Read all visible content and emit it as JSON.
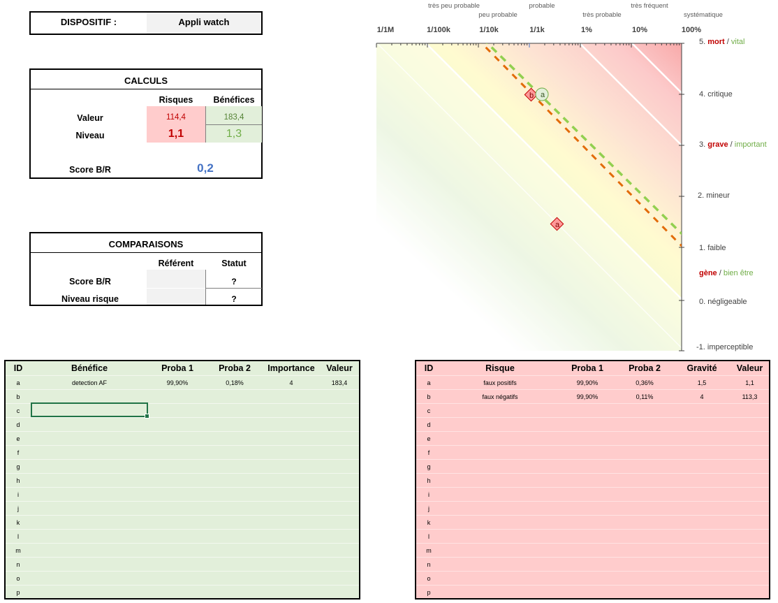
{
  "device": {
    "label": "DISPOSITIF :",
    "value": "Appli watch"
  },
  "calculs": {
    "title": "CALCULS",
    "col_risques": "Risques",
    "col_benefices": "Bénéfices",
    "row_valeur": "Valeur",
    "row_niveau": "Niveau",
    "valeur_risques": "114,4",
    "valeur_benefices": "183,4",
    "niveau_risques": "1,1",
    "niveau_benefices": "1,3",
    "score_label": "Score B/R",
    "score_value": "0,2"
  },
  "comparaisons": {
    "title": "COMPARAISONS",
    "col_referent": "Référent",
    "col_statut": "Statut",
    "row_score": "Score B/R",
    "row_niveau": "Niveau risque",
    "statut_score": "?",
    "statut_niveau": "?"
  },
  "chart": {
    "prob_labels_top": [
      "très peu probable",
      "probable",
      "très fréquent"
    ],
    "prob_labels_bottom": [
      "peu probable",
      "très probable",
      "systématique"
    ],
    "x_ticks": [
      "1/1M",
      "1/100k",
      "1/10k",
      "1/1k",
      "1%",
      "10%",
      "100%"
    ],
    "severity": [
      {
        "num": "5.",
        "risk": "mort",
        "sep": " / ",
        "benefit": "vital"
      },
      {
        "num": "4.",
        "text": "critique"
      },
      {
        "num": "3.",
        "risk": "grave",
        "sep": " / ",
        "benefit": "important"
      },
      {
        "num": "2.",
        "text": "mineur"
      },
      {
        "num": "1.",
        "text": "faible"
      },
      {
        "num": "",
        "risk": "gène",
        "sep": " / ",
        "benefit": "bien être"
      },
      {
        "num": "0.",
        "text": "négligeable"
      },
      {
        "num": "-1.",
        "text": "imperceptible"
      }
    ],
    "markers": [
      {
        "id": "b",
        "kind": "risk"
      },
      {
        "id": "a",
        "kind": "benefit"
      },
      {
        "id": "a",
        "kind": "risk"
      }
    ],
    "colors": {
      "risk": "#c00000",
      "benefit": "#70ad47",
      "risk_line": "#e26b0a",
      "benefit_line": "#92d050"
    }
  },
  "benefits_table": {
    "headers": [
      "ID",
      "Bénéfice",
      "Proba 1",
      "Proba 2",
      "Importance",
      "Valeur"
    ],
    "rows": [
      [
        "a",
        "detection AF",
        "99,90%",
        "0,18%",
        "4",
        "183,4"
      ],
      [
        "b",
        "",
        "",
        "",
        "",
        ""
      ],
      [
        "c",
        "",
        "",
        "",
        "",
        ""
      ],
      [
        "d",
        "",
        "",
        "",
        "",
        ""
      ],
      [
        "e",
        "",
        "",
        "",
        "",
        ""
      ],
      [
        "f",
        "",
        "",
        "",
        "",
        ""
      ],
      [
        "g",
        "",
        "",
        "",
        "",
        ""
      ],
      [
        "h",
        "",
        "",
        "",
        "",
        ""
      ],
      [
        "i",
        "",
        "",
        "",
        "",
        ""
      ],
      [
        "j",
        "",
        "",
        "",
        "",
        ""
      ],
      [
        "k",
        "",
        "",
        "",
        "",
        ""
      ],
      [
        "l",
        "",
        "",
        "",
        "",
        ""
      ],
      [
        "m",
        "",
        "",
        "",
        "",
        ""
      ],
      [
        "n",
        "",
        "",
        "",
        "",
        ""
      ],
      [
        "o",
        "",
        "",
        "",
        "",
        ""
      ],
      [
        "p",
        "",
        "",
        "",
        "",
        ""
      ]
    ]
  },
  "risks_table": {
    "headers": [
      "ID",
      "Risque",
      "Proba 1",
      "Proba 2",
      "Gravité",
      "Valeur"
    ],
    "rows": [
      [
        "a",
        "faux positifs",
        "99,90%",
        "0,36%",
        "1,5",
        "1,1"
      ],
      [
        "b",
        "faux négatifs",
        "99,90%",
        "0,11%",
        "4",
        "113,3"
      ],
      [
        "c",
        "",
        "",
        "",
        "",
        ""
      ],
      [
        "d",
        "",
        "",
        "",
        "",
        ""
      ],
      [
        "e",
        "",
        "",
        "",
        "",
        ""
      ],
      [
        "f",
        "",
        "",
        "",
        "",
        ""
      ],
      [
        "g",
        "",
        "",
        "",
        "",
        ""
      ],
      [
        "h",
        "",
        "",
        "",
        "",
        ""
      ],
      [
        "i",
        "",
        "",
        "",
        "",
        ""
      ],
      [
        "j",
        "",
        "",
        "",
        "",
        ""
      ],
      [
        "k",
        "",
        "",
        "",
        "",
        ""
      ],
      [
        "l",
        "",
        "",
        "",
        "",
        ""
      ],
      [
        "m",
        "",
        "",
        "",
        "",
        ""
      ],
      [
        "n",
        "",
        "",
        "",
        "",
        ""
      ],
      [
        "o",
        "",
        "",
        "",
        "",
        ""
      ],
      [
        "p",
        "",
        "",
        "",
        "",
        ""
      ]
    ]
  }
}
